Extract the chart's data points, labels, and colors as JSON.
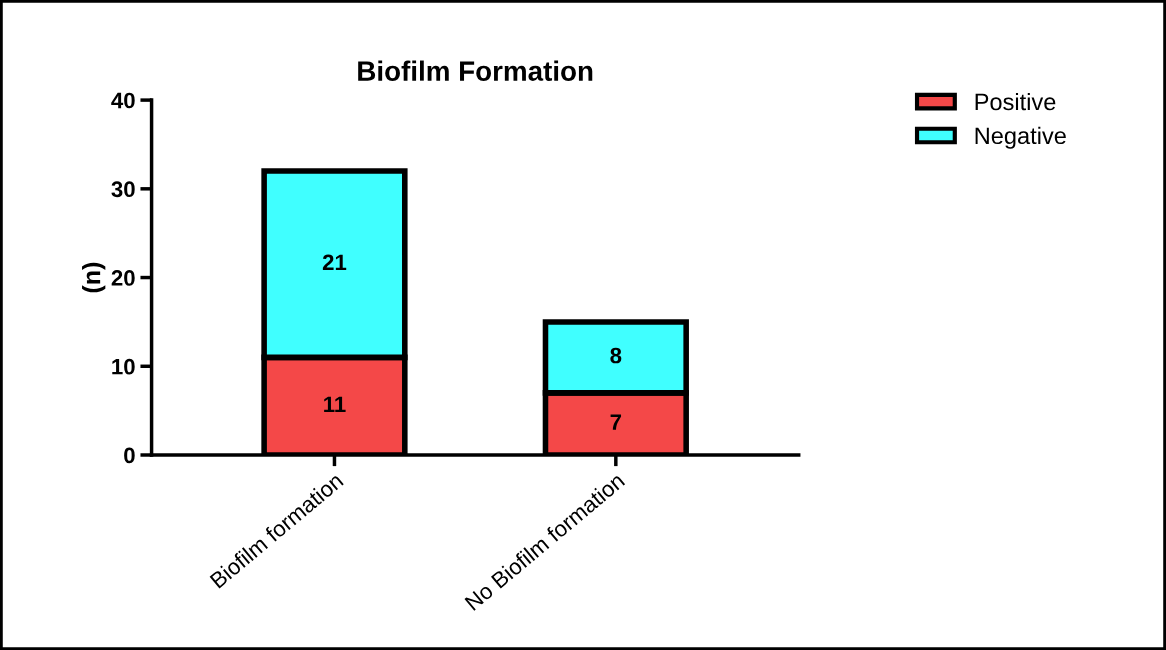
{
  "chart_data": {
    "type": "bar",
    "title": "Biofilm Formation",
    "ylabel": "(n)",
    "categories": [
      "Biofilm formation",
      "No Biofilm formation"
    ],
    "series": [
      {
        "name": "Positive",
        "color": "#f44848",
        "values": [
          11,
          7
        ]
      },
      {
        "name": "Negative",
        "color": "#40ffff",
        "values": [
          21,
          8
        ]
      }
    ],
    "stacked": true,
    "ylim": [
      0,
      40
    ],
    "yticks": [
      0,
      10,
      20,
      30,
      40
    ],
    "data_labels": true,
    "legend": "top right",
    "grid": false
  }
}
